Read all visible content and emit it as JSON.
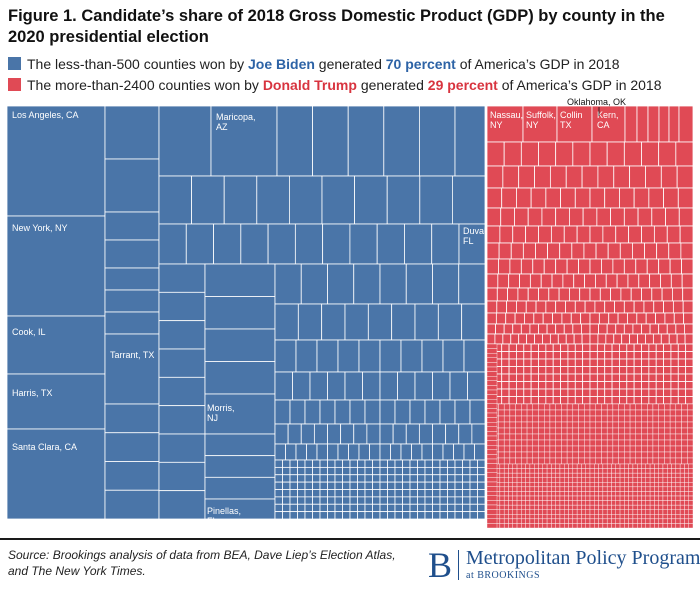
{
  "chart_data": {
    "type": "treemap",
    "title": "Figure 1. Candidate’s share of 2018 Gross Domestic Product (GDP) by county in the 2020 presidential election",
    "colors": {
      "biden": "#4a75a8",
      "trump": "#e04a55"
    },
    "legend": {
      "biden": {
        "pre": "The less-than-500 counties won by ",
        "name": "Joe Biden",
        "mid": " generated ",
        "pct": "70 percent",
        "post": " of America’s GDP in 2018"
      },
      "trump": {
        "pre": "The more-than-2400 counties won by ",
        "name": "Donald Trump",
        "mid": " generated ",
        "pct": "29 percent",
        "post": " of America’s GDP in 2018"
      }
    },
    "series": [
      {
        "name": "Joe Biden",
        "share_pct": 70,
        "counties": "less-than-500"
      },
      {
        "name": "Donald Trump",
        "share_pct": 29,
        "counties": "more-than-2400"
      }
    ],
    "labels": {
      "biden": [
        "Los Angeles, CA",
        "New York, NY",
        "Cook, IL",
        "Harris, TX",
        "Santa Clara, CA",
        "Tarrant, TX",
        "Maricopa, AZ",
        "Morris, NJ",
        "Pinellas, FL",
        "Duval, FL"
      ],
      "trump": [
        "Nassau, NY",
        "Suffolk, NY",
        "Collin TX",
        "Kern, CA",
        "Oklahoma, OK"
      ]
    }
  },
  "source": "Source: Brookings analysis of data from BEA, Dave Liep’s Election Atlas, and The New York Times.",
  "brand": {
    "letter": "B",
    "name": "Metropolitan Policy Program",
    "sub": "at BROOKINGS"
  }
}
